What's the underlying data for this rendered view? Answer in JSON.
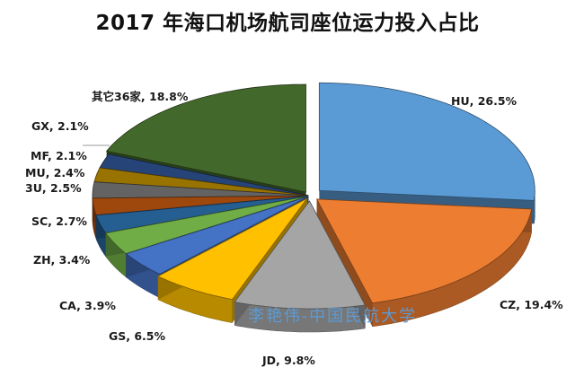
{
  "title": "2017 年海口机场航司座位运力投入占比",
  "watermark": "李艳伟-中国民航大学",
  "labels": {
    "HU": "HU, 26.5%",
    "CZ": "CZ, 19.4%",
    "JD": "JD, 9.8%",
    "GS": "GS, 6.5%",
    "CA": "CA, 3.9%",
    "ZH": "ZH, 3.4%",
    "SC": "SC, 2.7%",
    "U3": "3U, 2.5%",
    "MU": "MU, 2.4%",
    "MF": "MF, 2.1%",
    "GX": "GX, 2.1%",
    "OTHER": "其它36家, 18.8%"
  },
  "chart_data": {
    "type": "pie",
    "style": "3d-exploded",
    "title": "2017 年海口机场航司座位运力投入占比",
    "categories": [
      "HU",
      "CZ",
      "JD",
      "GS",
      "CA",
      "ZH",
      "SC",
      "3U",
      "MU",
      "MF",
      "GX",
      "其它36家"
    ],
    "values": [
      26.5,
      19.4,
      9.8,
      6.5,
      3.9,
      3.4,
      2.7,
      2.5,
      2.4,
      2.1,
      2.1,
      18.8
    ],
    "unit": "%",
    "colors": [
      "#5b9bd5",
      "#ed7d31",
      "#a5a5a5",
      "#ffc000",
      "#4472c4",
      "#70ad47",
      "#255e91",
      "#9e480e",
      "#636363",
      "#997300",
      "#264478",
      "#43682b"
    ],
    "data_labels": "category, percent",
    "legend": "none"
  }
}
